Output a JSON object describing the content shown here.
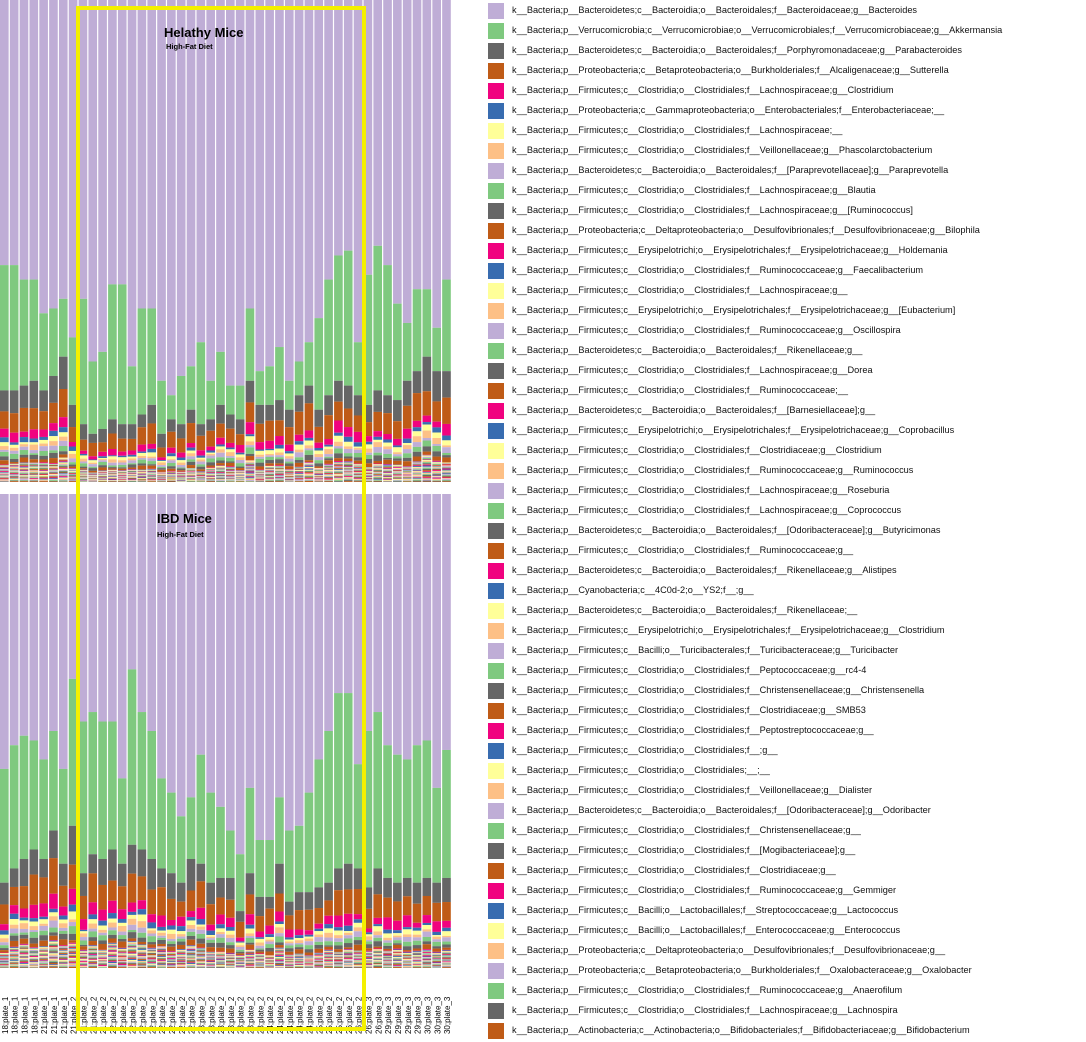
{
  "chart_data": [
    {
      "type": "bar",
      "stacked": true,
      "normalized": true,
      "title": "Helathy Mice",
      "subtitle": "High-Fat Diet",
      "categories": [
        "18;plate_1",
        "18;plate_1",
        "18;plate_1",
        "18;plate_1",
        "21;plate_1",
        "21;plate_1",
        "21;plate_1",
        "21;plate_2",
        "21;plate_2",
        "21;plate_2",
        "21;plate_2",
        "22;plate_2",
        "22;plate_2",
        "22;plate_2",
        "22;plate_2",
        "22;plate_2",
        "22;plate_2",
        "22;plate_2",
        "22;plate_2",
        "22;plate_2",
        "23;plate_2",
        "23;plate_2",
        "23;plate_2",
        "23;plate_2",
        "23;plate_2",
        "23;plate_2",
        "23;plate_2",
        "24;plate_2",
        "24;plate_2",
        "24;plate_2",
        "24;plate_2",
        "24;plate_2",
        "25;plate_2",
        "25;plate_2",
        "25;plate_2",
        "26;plate_2",
        "26;plate_2",
        "26;plate_3",
        "26;plate_3",
        "29;plate_3",
        "29;plate_3",
        "29;plate_3",
        "29;plate_3",
        "30;plate_3",
        "30;plate_3",
        "30;plate_3"
      ],
      "bacteroides_fraction": [
        0.55,
        0.55,
        0.58,
        0.58,
        0.65,
        0.64,
        0.62,
        0.7,
        0.62,
        0.75,
        0.73,
        0.59,
        0.59,
        0.76,
        0.64,
        0.64,
        0.79,
        0.82,
        0.78,
        0.76,
        0.71,
        0.79,
        0.73,
        0.8,
        0.8,
        0.64,
        0.77,
        0.76,
        0.72,
        0.79,
        0.75,
        0.71,
        0.66,
        0.58,
        0.53,
        0.52,
        0.71,
        0.57,
        0.51,
        0.55,
        0.63,
        0.67,
        0.6,
        0.6,
        0.68,
        0.58
      ],
      "akkermansia_fraction": [
        0.26,
        0.26,
        0.22,
        0.21,
        0.16,
        0.14,
        0.12,
        0.14,
        0.26,
        0.15,
        0.16,
        0.28,
        0.29,
        0.12,
        0.22,
        0.2,
        0.11,
        0.05,
        0.1,
        0.09,
        0.17,
        0.08,
        0.11,
        0.06,
        0.07,
        0.15,
        0.07,
        0.08,
        0.11,
        0.06,
        0.07,
        0.09,
        0.19,
        0.24,
        0.26,
        0.28,
        0.11,
        0.27,
        0.3,
        0.27,
        0.2,
        0.12,
        0.17,
        0.14,
        0.09,
        0.19
      ]
    },
    {
      "type": "bar",
      "stacked": true,
      "normalized": true,
      "title": "IBD Mice",
      "subtitle": "High-Fat Diet",
      "categories": [
        "18;plate_1",
        "18;plate_1",
        "18;plate_1",
        "18;plate_1",
        "21;plate_1",
        "21;plate_1",
        "21;plate_1",
        "21;plate_2",
        "21;plate_2",
        "21;plate_2",
        "21;plate_2",
        "22;plate_2",
        "22;plate_2",
        "22;plate_2",
        "22;plate_2",
        "22;plate_2",
        "22;plate_2",
        "22;plate_2",
        "22;plate_2",
        "22;plate_2",
        "23;plate_2",
        "23;plate_2",
        "23;plate_2",
        "23;plate_2",
        "23;plate_2",
        "23;plate_2",
        "23;plate_2",
        "24;plate_2",
        "24;plate_2",
        "24;plate_2",
        "24;plate_2",
        "24;plate_2",
        "25;plate_2",
        "25;plate_2",
        "25;plate_2",
        "26;plate_2",
        "26;plate_2",
        "26;plate_3",
        "26;plate_3",
        "29;plate_3",
        "29;plate_3",
        "29;plate_3",
        "29;plate_3",
        "30;plate_3",
        "30;plate_3",
        "30;plate_3"
      ],
      "bacteroides_fraction": [
        0.58,
        0.53,
        0.51,
        0.52,
        0.56,
        0.5,
        0.58,
        0.39,
        0.48,
        0.46,
        0.48,
        0.48,
        0.6,
        0.37,
        0.46,
        0.5,
        0.6,
        0.63,
        0.68,
        0.64,
        0.55,
        0.63,
        0.66,
        0.71,
        0.76,
        0.62,
        0.73,
        0.73,
        0.64,
        0.71,
        0.7,
        0.63,
        0.56,
        0.5,
        0.42,
        0.42,
        0.57,
        0.5,
        0.46,
        0.53,
        0.55,
        0.56,
        0.53,
        0.52,
        0.62,
        0.54
      ],
      "akkermansia_fraction": [
        0.24,
        0.26,
        0.26,
        0.23,
        0.21,
        0.21,
        0.2,
        0.31,
        0.32,
        0.3,
        0.29,
        0.27,
        0.18,
        0.37,
        0.29,
        0.27,
        0.19,
        0.17,
        0.14,
        0.13,
        0.23,
        0.19,
        0.15,
        0.1,
        0.12,
        0.18,
        0.12,
        0.12,
        0.14,
        0.15,
        0.14,
        0.21,
        0.27,
        0.32,
        0.37,
        0.36,
        0.22,
        0.33,
        0.33,
        0.28,
        0.27,
        0.25,
        0.29,
        0.29,
        0.2,
        0.27
      ]
    }
  ],
  "legend": [
    {
      "label": "k__Bacteria;p__Bacteroidetes;c__Bacteroidia;o__Bacteroidales;f__Bacteroidaceae;g__Bacteroides",
      "color": "#bfadd6"
    },
    {
      "label": "k__Bacteria;p__Verrucomicrobia;c__Verrucomicrobiae;o__Verrucomicrobiales;f__Verrucomicrobiaceae;g__Akkermansia",
      "color": "#7fc97f"
    },
    {
      "label": "k__Bacteria;p__Bacteroidetes;c__Bacteroidia;o__Bacteroidales;f__Porphyromonadaceae;g__Parabacteroides",
      "color": "#666666"
    },
    {
      "label": "k__Bacteria;p__Proteobacteria;c__Betaproteobacteria;o__Burkholderiales;f__Alcaligenaceae;g__Sutterella",
      "color": "#bf5b17"
    },
    {
      "label": "k__Bacteria;p__Firmicutes;c__Clostridia;o__Clostridiales;f__Lachnospiraceae;g__Clostridium",
      "color": "#f0027f"
    },
    {
      "label": "k__Bacteria;p__Proteobacteria;c__Gammaproteobacteria;o__Enterobacteriales;f__Enterobacteriaceae;__",
      "color": "#386cb0"
    },
    {
      "label": "k__Bacteria;p__Firmicutes;c__Clostridia;o__Clostridiales;f__Lachnospiraceae;__",
      "color": "#ffff99"
    },
    {
      "label": "k__Bacteria;p__Firmicutes;c__Clostridia;o__Clostridiales;f__Veillonellaceae;g__Phascolarctobacterium",
      "color": "#fdc086"
    },
    {
      "label": "k__Bacteria;p__Bacteroidetes;c__Bacteroidia;o__Bacteroidales;f__[Paraprevotellaceae];g__Paraprevotella",
      "color": "#bfadd6"
    },
    {
      "label": "k__Bacteria;p__Firmicutes;c__Clostridia;o__Clostridiales;f__Lachnospiraceae;g__Blautia",
      "color": "#7fc97f"
    },
    {
      "label": "k__Bacteria;p__Firmicutes;c__Clostridia;o__Clostridiales;f__Lachnospiraceae;g__[Ruminococcus]",
      "color": "#666666"
    },
    {
      "label": "k__Bacteria;p__Proteobacteria;c__Deltaproteobacteria;o__Desulfovibrionales;f__Desulfovibrionaceae;g__Bilophila",
      "color": "#bf5b17"
    },
    {
      "label": "k__Bacteria;p__Firmicutes;c__Erysipelotrichi;o__Erysipelotrichales;f__Erysipelotrichaceae;g__Holdemania",
      "color": "#f0027f"
    },
    {
      "label": "k__Bacteria;p__Firmicutes;c__Clostridia;o__Clostridiales;f__Ruminococcaceae;g__Faecalibacterium",
      "color": "#386cb0"
    },
    {
      "label": "k__Bacteria;p__Firmicutes;c__Clostridia;o__Clostridiales;f__Lachnospiraceae;g__",
      "color": "#ffff99"
    },
    {
      "label": "k__Bacteria;p__Firmicutes;c__Erysipelotrichi;o__Erysipelotrichales;f__Erysipelotrichaceae;g__[Eubacterium]",
      "color": "#fdc086"
    },
    {
      "label": "k__Bacteria;p__Firmicutes;c__Clostridia;o__Clostridiales;f__Ruminococcaceae;g__Oscillospira",
      "color": "#bfadd6"
    },
    {
      "label": "k__Bacteria;p__Bacteroidetes;c__Bacteroidia;o__Bacteroidales;f__Rikenellaceae;g__",
      "color": "#7fc97f"
    },
    {
      "label": "k__Bacteria;p__Firmicutes;c__Clostridia;o__Clostridiales;f__Lachnospiraceae;g__Dorea",
      "color": "#666666"
    },
    {
      "label": "k__Bacteria;p__Firmicutes;c__Clostridia;o__Clostridiales;f__Ruminococcaceae;__",
      "color": "#bf5b17"
    },
    {
      "label": "k__Bacteria;p__Bacteroidetes;c__Bacteroidia;o__Bacteroidales;f__[Barnesiellaceae];g__",
      "color": "#f0027f"
    },
    {
      "label": "k__Bacteria;p__Firmicutes;c__Erysipelotrichi;o__Erysipelotrichales;f__Erysipelotrichaceae;g__Coprobacillus",
      "color": "#386cb0"
    },
    {
      "label": "k__Bacteria;p__Firmicutes;c__Clostridia;o__Clostridiales;f__Clostridiaceae;g__Clostridium",
      "color": "#ffff99"
    },
    {
      "label": "k__Bacteria;p__Firmicutes;c__Clostridia;o__Clostridiales;f__Ruminococcaceae;g__Ruminococcus",
      "color": "#fdc086"
    },
    {
      "label": "k__Bacteria;p__Firmicutes;c__Clostridia;o__Clostridiales;f__Lachnospiraceae;g__Roseburia",
      "color": "#bfadd6"
    },
    {
      "label": "k__Bacteria;p__Firmicutes;c__Clostridia;o__Clostridiales;f__Lachnospiraceae;g__Coprococcus",
      "color": "#7fc97f"
    },
    {
      "label": "k__Bacteria;p__Bacteroidetes;c__Bacteroidia;o__Bacteroidales;f__[Odoribacteraceae];g__Butyricimonas",
      "color": "#666666"
    },
    {
      "label": "k__Bacteria;p__Firmicutes;c__Clostridia;o__Clostridiales;f__Ruminococcaceae;g__",
      "color": "#bf5b17"
    },
    {
      "label": "k__Bacteria;p__Bacteroidetes;c__Bacteroidia;o__Bacteroidales;f__Rikenellaceae;g__Alistipes",
      "color": "#f0027f"
    },
    {
      "label": "k__Bacteria;p__Cyanobacteria;c__4C0d-2;o__YS2;f__;g__",
      "color": "#386cb0"
    },
    {
      "label": "k__Bacteria;p__Bacteroidetes;c__Bacteroidia;o__Bacteroidales;f__Rikenellaceae;__",
      "color": "#ffff99"
    },
    {
      "label": "k__Bacteria;p__Firmicutes;c__Erysipelotrichi;o__Erysipelotrichales;f__Erysipelotrichaceae;g__Clostridium",
      "color": "#fdc086"
    },
    {
      "label": "k__Bacteria;p__Firmicutes;c__Bacilli;o__Turicibacterales;f__Turicibacteraceae;g__Turicibacter",
      "color": "#bfadd6"
    },
    {
      "label": "k__Bacteria;p__Firmicutes;c__Clostridia;o__Clostridiales;f__Peptococcaceae;g__rc4-4",
      "color": "#7fc97f"
    },
    {
      "label": "k__Bacteria;p__Firmicutes;c__Clostridia;o__Clostridiales;f__Christensenellaceae;g__Christensenella",
      "color": "#666666"
    },
    {
      "label": "k__Bacteria;p__Firmicutes;c__Clostridia;o__Clostridiales;f__Clostridiaceae;g__SMB53",
      "color": "#bf5b17"
    },
    {
      "label": "k__Bacteria;p__Firmicutes;c__Clostridia;o__Clostridiales;f__Peptostreptococcaceae;g__",
      "color": "#f0027f"
    },
    {
      "label": "k__Bacteria;p__Firmicutes;c__Clostridia;o__Clostridiales;f__;g__",
      "color": "#386cb0"
    },
    {
      "label": "k__Bacteria;p__Firmicutes;c__Clostridia;o__Clostridiales;__;__",
      "color": "#ffff99"
    },
    {
      "label": "k__Bacteria;p__Firmicutes;c__Clostridia;o__Clostridiales;f__Veillonellaceae;g__Dialister",
      "color": "#fdc086"
    },
    {
      "label": "k__Bacteria;p__Bacteroidetes;c__Bacteroidia;o__Bacteroidales;f__[Odoribacteraceae];g__Odoribacter",
      "color": "#bfadd6"
    },
    {
      "label": "k__Bacteria;p__Firmicutes;c__Clostridia;o__Clostridiales;f__Christensenellaceae;g__",
      "color": "#7fc97f"
    },
    {
      "label": "k__Bacteria;p__Firmicutes;c__Clostridia;o__Clostridiales;f__[Mogibacteriaceae];g__",
      "color": "#666666"
    },
    {
      "label": "k__Bacteria;p__Firmicutes;c__Clostridia;o__Clostridiales;f__Clostridiaceae;g__",
      "color": "#bf5b17"
    },
    {
      "label": "k__Bacteria;p__Firmicutes;c__Clostridia;o__Clostridiales;f__Ruminococcaceae;g__Gemmiger",
      "color": "#f0027f"
    },
    {
      "label": "k__Bacteria;p__Firmicutes;c__Bacilli;o__Lactobacillales;f__Streptococcaceae;g__Lactococcus",
      "color": "#386cb0"
    },
    {
      "label": "k__Bacteria;p__Firmicutes;c__Bacilli;o__Lactobacillales;f__Enterococcaceae;g__Enterococcus",
      "color": "#ffff99"
    },
    {
      "label": "k__Bacteria;p__Proteobacteria;c__Deltaproteobacteria;o__Desulfovibrionales;f__Desulfovibrionaceae;g__",
      "color": "#fdc086"
    },
    {
      "label": "k__Bacteria;p__Proteobacteria;c__Betaproteobacteria;o__Burkholderiales;f__Oxalobacteraceae;g__Oxalobacter",
      "color": "#bfadd6"
    },
    {
      "label": "k__Bacteria;p__Firmicutes;c__Clostridia;o__Clostridiales;f__Ruminococcaceae;g__Anaerofilum",
      "color": "#7fc97f"
    },
    {
      "label": "k__Bacteria;p__Firmicutes;c__Clostridia;o__Clostridiales;f__Lachnospiraceae;g__Lachnospira",
      "color": "#666666"
    },
    {
      "label": "k__Bacteria;p__Actinobacteria;c__Actinobacteria;o__Bifidobacteriales;f__Bifidobacteriaceae;g__Bifidobacterium",
      "color": "#bf5b17"
    }
  ],
  "highlight_box_color": "#f4f000"
}
